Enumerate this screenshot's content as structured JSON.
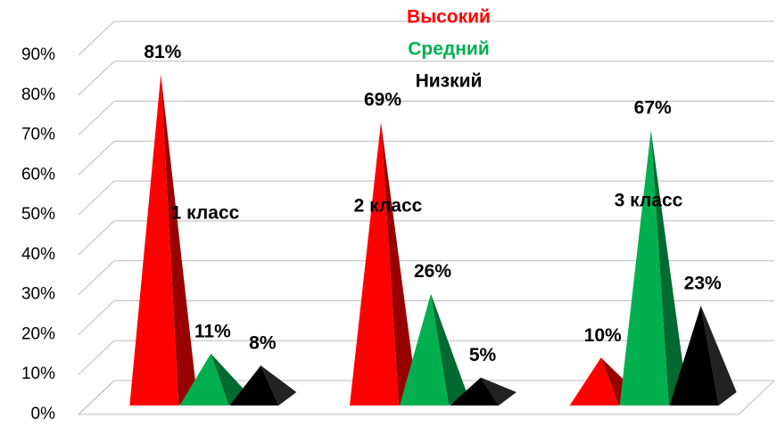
{
  "chart_data": {
    "type": "pyramid3d",
    "categories": [
      "1 класс",
      "2 класс",
      "3 класс"
    ],
    "series": [
      {
        "name": "Высокий",
        "color": "#ff0000",
        "values": [
          81,
          69,
          10
        ],
        "value_labels": [
          "81%",
          "69%",
          "10%"
        ]
      },
      {
        "name": "Средний",
        "color": "#00b050",
        "values": [
          11,
          26,
          67
        ],
        "value_labels": [
          "11%",
          "26%",
          "67%"
        ]
      },
      {
        "name": "Низкий",
        "color": "#000000",
        "values": [
          8,
          5,
          23
        ],
        "value_labels": [
          "8%",
          "5%",
          "23%"
        ]
      }
    ],
    "ylim": [
      0,
      90
    ],
    "yticks": [
      {
        "value": 0,
        "label": "0%"
      },
      {
        "value": 10,
        "label": "10%"
      },
      {
        "value": 20,
        "label": "20%"
      },
      {
        "value": 30,
        "label": "30%"
      },
      {
        "value": 40,
        "label": "40%"
      },
      {
        "value": 50,
        "label": "50%"
      },
      {
        "value": 60,
        "label": "60%"
      },
      {
        "value": 70,
        "label": "70%"
      },
      {
        "value": 80,
        "label": "80%"
      },
      {
        "value": 90,
        "label": "90%"
      }
    ],
    "grid": true
  }
}
